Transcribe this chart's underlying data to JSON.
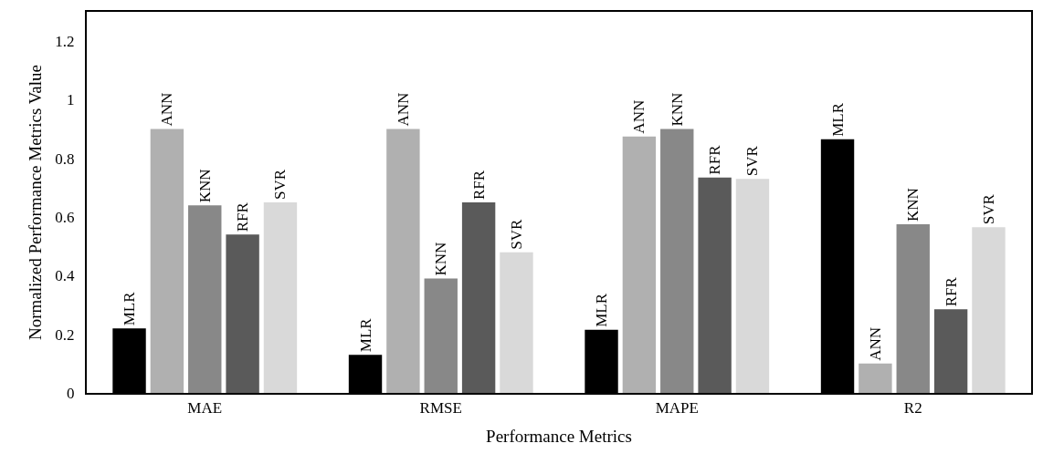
{
  "chart_data": {
    "type": "bar",
    "xlabel": "Performance Metrics",
    "ylabel": "Normalized Performance Metrics Value",
    "categories": [
      "MAE",
      "RMSE",
      "MAPE",
      "R2"
    ],
    "series": [
      {
        "name": "MLR",
        "color": "#000000",
        "values": [
          0.22,
          0.13,
          0.215,
          0.865
        ]
      },
      {
        "name": "ANN",
        "color": "#b0b0b0",
        "values": [
          0.9,
          0.9,
          0.875,
          0.1
        ]
      },
      {
        "name": "KNN",
        "color": "#888888",
        "values": [
          0.64,
          0.39,
          0.9,
          0.575
        ]
      },
      {
        "name": "RFR",
        "color": "#5a5a5a",
        "values": [
          0.54,
          0.65,
          0.735,
          0.285
        ]
      },
      {
        "name": "SVR",
        "color": "#d9d9d9",
        "values": [
          0.65,
          0.48,
          0.73,
          0.565
        ]
      }
    ],
    "ylim": [
      0,
      1.3
    ],
    "yticks": [
      0,
      0.2,
      0.4,
      0.6,
      0.8,
      1,
      1.2
    ],
    "grid": false,
    "legend": false
  }
}
